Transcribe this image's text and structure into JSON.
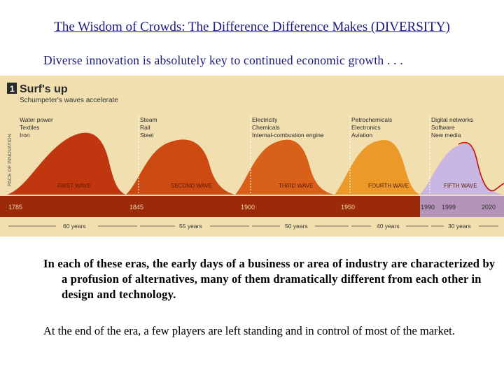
{
  "slide": {
    "title": "The Wisdom of Crowds: The Difference Difference Makes (DIVERSITY)",
    "subtitle": "Diverse innovation is absolutely key to continued economic growth . . .",
    "paragraph1": "In each of these eras, the early days of a business or area of industry are characterized by a profusion of alternatives, many of them dramatically different from each other in design and technology.",
    "paragraph2": "At the end of the era, a few players are left standing and in control of most of the market."
  },
  "figure": {
    "badge": "1",
    "heading": "Surf's up",
    "subheading": "Schumpeter's waves accelerate",
    "y_axis_label": "PACE OF INNOVATION",
    "colors": {
      "background": "#f2dfb0",
      "timeline": "#9a2a0a",
      "wave1": "#c0360f",
      "wave2": "#cc4a12",
      "wave3": "#d96018",
      "wave4": "#eb9a2a",
      "wave5": "#c9b7e3"
    },
    "waves": [
      {
        "label": "FIRST WAVE",
        "innovations": [
          "Water power",
          "Textiles",
          "Iron"
        ]
      },
      {
        "label": "SECOND WAVE",
        "innovations": [
          "Steam",
          "Rail",
          "Steel"
        ]
      },
      {
        "label": "THIRD WAVE",
        "innovations": [
          "Electricity",
          "Chemicals",
          "Internal-combustion engine"
        ]
      },
      {
        "label": "FOURTH WAVE",
        "innovations": [
          "Petrochemicals",
          "Electronics",
          "Aviation"
        ]
      },
      {
        "label": "FIFTH WAVE",
        "innovations": [
          "Digital networks",
          "Software",
          "New media"
        ]
      }
    ],
    "years": [
      "1785",
      "1845",
      "1900",
      "1950",
      "1990",
      "1999",
      "2020"
    ],
    "durations": [
      "60 years",
      "55 years",
      "50 years",
      "40 years",
      "30 years"
    ]
  }
}
